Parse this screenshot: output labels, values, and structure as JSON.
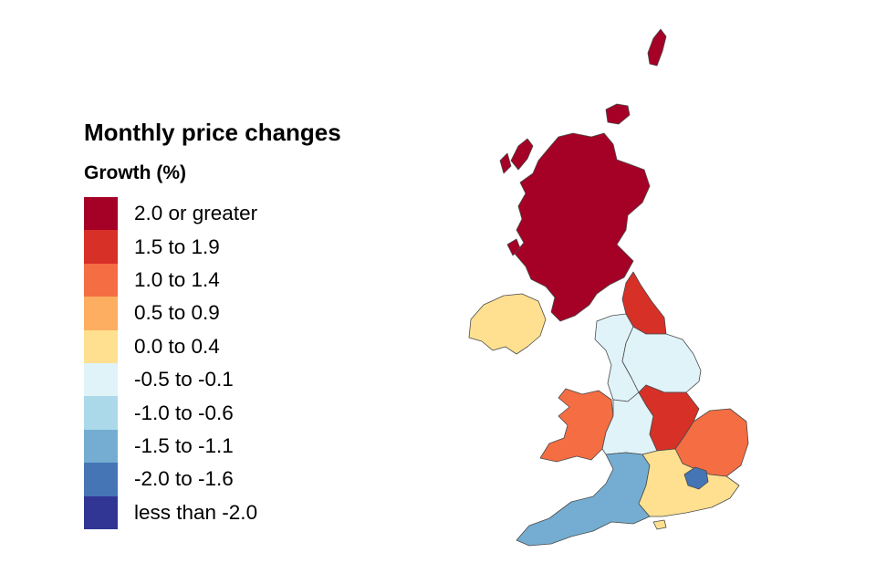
{
  "legend": {
    "title": "Monthly price changes",
    "subtitle": "Growth (%)",
    "items": [
      {
        "label": "2.0 or greater",
        "color": "#a50026"
      },
      {
        "label": "1.5 to 1.9",
        "color": "#d73027"
      },
      {
        "label": "1.0 to 1.4",
        "color": "#f46d43"
      },
      {
        "label": "0.5 to 0.9",
        "color": "#fdae61"
      },
      {
        "label": "0.0 to 0.4",
        "color": "#fee090"
      },
      {
        "label": "-0.5 to -0.1",
        "color": "#e0f3f8"
      },
      {
        "label": "-1.0 to -0.6",
        "color": "#abd9e9"
      },
      {
        "label": "-1.5 to -1.1",
        "color": "#74add1"
      },
      {
        "label": "-2.0 to -1.6",
        "color": "#4575b4"
      },
      {
        "label": "less than -2.0",
        "color": "#313695"
      }
    ]
  },
  "map": {
    "regions": [
      {
        "id": "scotland",
        "band": "2.0 or greater",
        "color": "#a50026"
      },
      {
        "id": "north-east",
        "band": "1.5 to 1.9",
        "color": "#d73027"
      },
      {
        "id": "north-west",
        "band": "-0.5 to -0.1",
        "color": "#e0f3f8"
      },
      {
        "id": "yorkshire-and-the-humber",
        "band": "-0.5 to -0.1",
        "color": "#e0f3f8"
      },
      {
        "id": "northern-ireland",
        "band": "0.0 to 0.4",
        "color": "#fee090"
      },
      {
        "id": "wales",
        "band": "1.0 to 1.4",
        "color": "#f46d43"
      },
      {
        "id": "west-midlands",
        "band": "-0.5 to -0.1",
        "color": "#e0f3f8"
      },
      {
        "id": "east-midlands",
        "band": "1.5 to 1.9",
        "color": "#d73027"
      },
      {
        "id": "east-of-england",
        "band": "1.0 to 1.4",
        "color": "#f46d43"
      },
      {
        "id": "london",
        "band": "-2.0 to -1.6",
        "color": "#4575b4"
      },
      {
        "id": "south-east",
        "band": "0.0 to 0.4",
        "color": "#fee090"
      },
      {
        "id": "south-west",
        "band": "-1.5 to -1.1",
        "color": "#74add1"
      }
    ]
  }
}
